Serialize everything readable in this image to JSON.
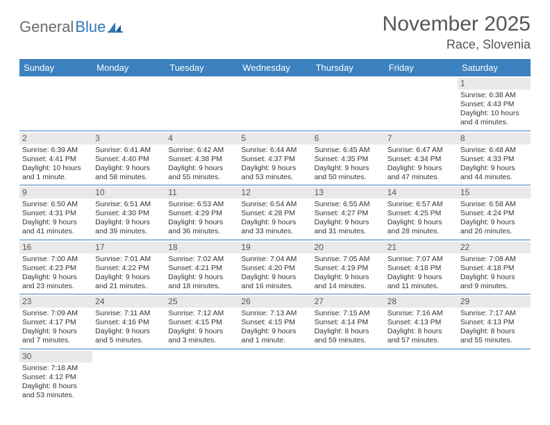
{
  "brand": {
    "part1": "General",
    "part2": "Blue"
  },
  "title": "November 2025",
  "location": "Race, Slovenia",
  "colors": {
    "header_bg": "#3b81bf",
    "header_text": "#ffffff",
    "daynum_bg": "#e9e9e9",
    "row_border": "#3b81bf",
    "text": "#333333",
    "title_text": "#555555",
    "logo_gray": "#6a6a6a",
    "logo_blue": "#2f77b7",
    "page_bg": "#ffffff"
  },
  "weekdays": [
    "Sunday",
    "Monday",
    "Tuesday",
    "Wednesday",
    "Thursday",
    "Friday",
    "Saturday"
  ],
  "weeks": [
    [
      {
        "empty": true
      },
      {
        "empty": true
      },
      {
        "empty": true
      },
      {
        "empty": true
      },
      {
        "empty": true
      },
      {
        "empty": true
      },
      {
        "n": "1",
        "sr": "Sunrise: 6:38 AM",
        "ss": "Sunset: 4:43 PM",
        "dl": "Daylight: 10 hours and 4 minutes."
      }
    ],
    [
      {
        "n": "2",
        "sr": "Sunrise: 6:39 AM",
        "ss": "Sunset: 4:41 PM",
        "dl": "Daylight: 10 hours and 1 minute."
      },
      {
        "n": "3",
        "sr": "Sunrise: 6:41 AM",
        "ss": "Sunset: 4:40 PM",
        "dl": "Daylight: 9 hours and 58 minutes."
      },
      {
        "n": "4",
        "sr": "Sunrise: 6:42 AM",
        "ss": "Sunset: 4:38 PM",
        "dl": "Daylight: 9 hours and 55 minutes."
      },
      {
        "n": "5",
        "sr": "Sunrise: 6:44 AM",
        "ss": "Sunset: 4:37 PM",
        "dl": "Daylight: 9 hours and 53 minutes."
      },
      {
        "n": "6",
        "sr": "Sunrise: 6:45 AM",
        "ss": "Sunset: 4:35 PM",
        "dl": "Daylight: 9 hours and 50 minutes."
      },
      {
        "n": "7",
        "sr": "Sunrise: 6:47 AM",
        "ss": "Sunset: 4:34 PM",
        "dl": "Daylight: 9 hours and 47 minutes."
      },
      {
        "n": "8",
        "sr": "Sunrise: 6:48 AM",
        "ss": "Sunset: 4:33 PM",
        "dl": "Daylight: 9 hours and 44 minutes."
      }
    ],
    [
      {
        "n": "9",
        "sr": "Sunrise: 6:50 AM",
        "ss": "Sunset: 4:31 PM",
        "dl": "Daylight: 9 hours and 41 minutes."
      },
      {
        "n": "10",
        "sr": "Sunrise: 6:51 AM",
        "ss": "Sunset: 4:30 PM",
        "dl": "Daylight: 9 hours and 39 minutes."
      },
      {
        "n": "11",
        "sr": "Sunrise: 6:53 AM",
        "ss": "Sunset: 4:29 PM",
        "dl": "Daylight: 9 hours and 36 minutes."
      },
      {
        "n": "12",
        "sr": "Sunrise: 6:54 AM",
        "ss": "Sunset: 4:28 PM",
        "dl": "Daylight: 9 hours and 33 minutes."
      },
      {
        "n": "13",
        "sr": "Sunrise: 6:55 AM",
        "ss": "Sunset: 4:27 PM",
        "dl": "Daylight: 9 hours and 31 minutes."
      },
      {
        "n": "14",
        "sr": "Sunrise: 6:57 AM",
        "ss": "Sunset: 4:25 PM",
        "dl": "Daylight: 9 hours and 28 minutes."
      },
      {
        "n": "15",
        "sr": "Sunrise: 6:58 AM",
        "ss": "Sunset: 4:24 PM",
        "dl": "Daylight: 9 hours and 26 minutes."
      }
    ],
    [
      {
        "n": "16",
        "sr": "Sunrise: 7:00 AM",
        "ss": "Sunset: 4:23 PM",
        "dl": "Daylight: 9 hours and 23 minutes."
      },
      {
        "n": "17",
        "sr": "Sunrise: 7:01 AM",
        "ss": "Sunset: 4:22 PM",
        "dl": "Daylight: 9 hours and 21 minutes."
      },
      {
        "n": "18",
        "sr": "Sunrise: 7:02 AM",
        "ss": "Sunset: 4:21 PM",
        "dl": "Daylight: 9 hours and 18 minutes."
      },
      {
        "n": "19",
        "sr": "Sunrise: 7:04 AM",
        "ss": "Sunset: 4:20 PM",
        "dl": "Daylight: 9 hours and 16 minutes."
      },
      {
        "n": "20",
        "sr": "Sunrise: 7:05 AM",
        "ss": "Sunset: 4:19 PM",
        "dl": "Daylight: 9 hours and 14 minutes."
      },
      {
        "n": "21",
        "sr": "Sunrise: 7:07 AM",
        "ss": "Sunset: 4:18 PM",
        "dl": "Daylight: 9 hours and 11 minutes."
      },
      {
        "n": "22",
        "sr": "Sunrise: 7:08 AM",
        "ss": "Sunset: 4:18 PM",
        "dl": "Daylight: 9 hours and 9 minutes."
      }
    ],
    [
      {
        "n": "23",
        "sr": "Sunrise: 7:09 AM",
        "ss": "Sunset: 4:17 PM",
        "dl": "Daylight: 9 hours and 7 minutes."
      },
      {
        "n": "24",
        "sr": "Sunrise: 7:11 AM",
        "ss": "Sunset: 4:16 PM",
        "dl": "Daylight: 9 hours and 5 minutes."
      },
      {
        "n": "25",
        "sr": "Sunrise: 7:12 AM",
        "ss": "Sunset: 4:15 PM",
        "dl": "Daylight: 9 hours and 3 minutes."
      },
      {
        "n": "26",
        "sr": "Sunrise: 7:13 AM",
        "ss": "Sunset: 4:15 PM",
        "dl": "Daylight: 9 hours and 1 minute."
      },
      {
        "n": "27",
        "sr": "Sunrise: 7:15 AM",
        "ss": "Sunset: 4:14 PM",
        "dl": "Daylight: 8 hours and 59 minutes."
      },
      {
        "n": "28",
        "sr": "Sunrise: 7:16 AM",
        "ss": "Sunset: 4:13 PM",
        "dl": "Daylight: 8 hours and 57 minutes."
      },
      {
        "n": "29",
        "sr": "Sunrise: 7:17 AM",
        "ss": "Sunset: 4:13 PM",
        "dl": "Daylight: 8 hours and 55 minutes."
      }
    ],
    [
      {
        "n": "30",
        "sr": "Sunrise: 7:18 AM",
        "ss": "Sunset: 4:12 PM",
        "dl": "Daylight: 8 hours and 53 minutes."
      },
      {
        "empty": true
      },
      {
        "empty": true
      },
      {
        "empty": true
      },
      {
        "empty": true
      },
      {
        "empty": true
      },
      {
        "empty": true
      }
    ]
  ]
}
